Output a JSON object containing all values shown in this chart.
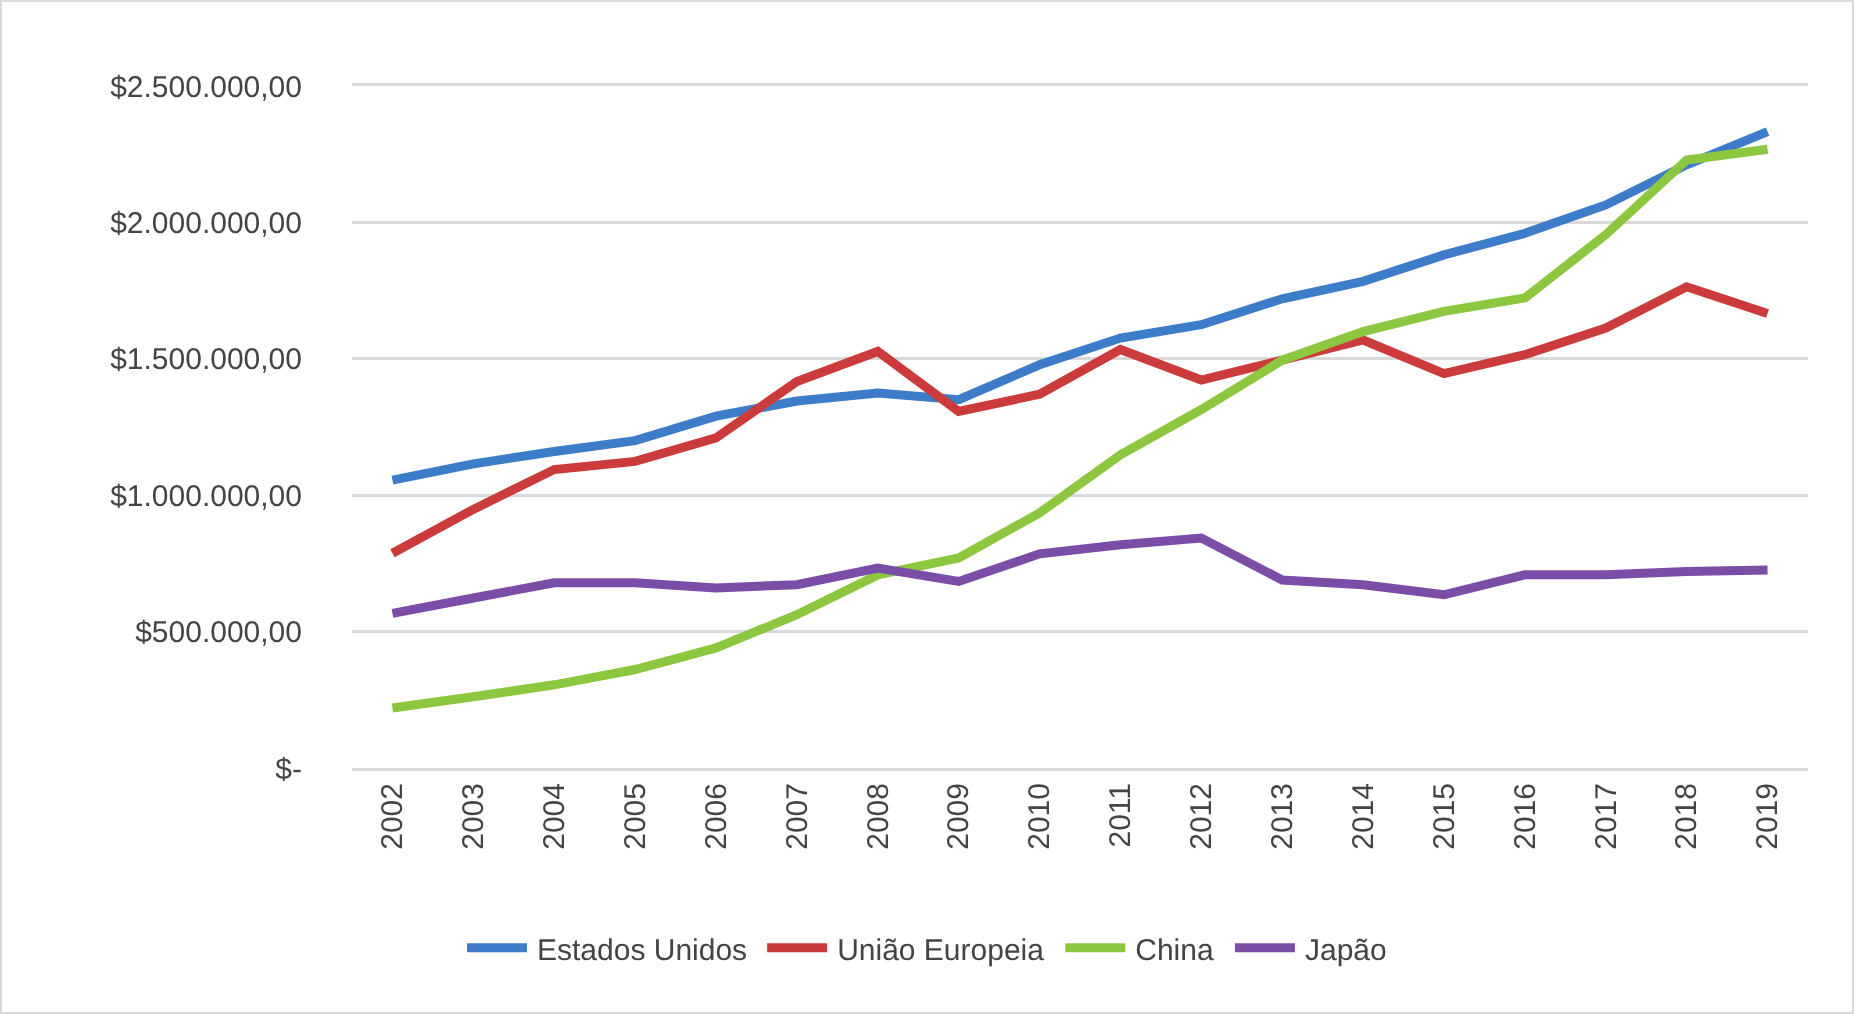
{
  "chart_data": {
    "type": "line",
    "categories": [
      "2002",
      "2003",
      "2004",
      "2005",
      "2006",
      "2007",
      "2008",
      "2009",
      "2010",
      "2011",
      "2012",
      "2013",
      "2014",
      "2015",
      "2016",
      "2017",
      "2018",
      "2019"
    ],
    "series": [
      {
        "name": "Estados Unidos",
        "color": "#3d7cc9",
        "values": [
          1055000,
          1115000,
          1160000,
          1200000,
          1290000,
          1345000,
          1375000,
          1350000,
          1478000,
          1576000,
          1625000,
          1720000,
          1784000,
          1881000,
          1960000,
          2064000,
          2211000,
          2333000
        ]
      },
      {
        "name": "União Europeia",
        "color": "#cc3b3b",
        "values": [
          787000,
          948000,
          1094000,
          1124000,
          1210000,
          1417000,
          1527000,
          1307000,
          1370000,
          1534000,
          1422000,
          1495000,
          1569000,
          1446000,
          1515000,
          1613000,
          1764000,
          1666000
        ]
      },
      {
        "name": "China",
        "color": "#8dc63f",
        "values": [
          220000,
          261000,
          305000,
          361000,
          440000,
          562000,
          708000,
          770000,
          935000,
          1148000,
          1314000,
          1495000,
          1600000,
          1674000,
          1723000,
          1955000,
          2229000,
          2268000
        ]
      },
      {
        "name": "Japão",
        "color": "#7a4da6",
        "values": [
          567000,
          623000,
          679000,
          679000,
          660000,
          672000,
          733000,
          684000,
          785000,
          818000,
          843000,
          689000,
          672000,
          635000,
          708000,
          708000,
          720000,
          726000
        ]
      }
    ],
    "ylim": [
      0,
      2500000
    ],
    "yticks": [
      {
        "value": 0,
        "label": "$-"
      },
      {
        "value": 500000,
        "label": "$500.000,00"
      },
      {
        "value": 1000000,
        "label": "$1.000.000,00"
      },
      {
        "value": 1500000,
        "label": "$1.500.000,00"
      },
      {
        "value": 2000000,
        "label": "$2.000.000,00"
      },
      {
        "value": 2500000,
        "label": "$2.500.000,00"
      }
    ],
    "grid": "y",
    "legend": "bottom",
    "marker": "none",
    "line_style": "solid"
  }
}
